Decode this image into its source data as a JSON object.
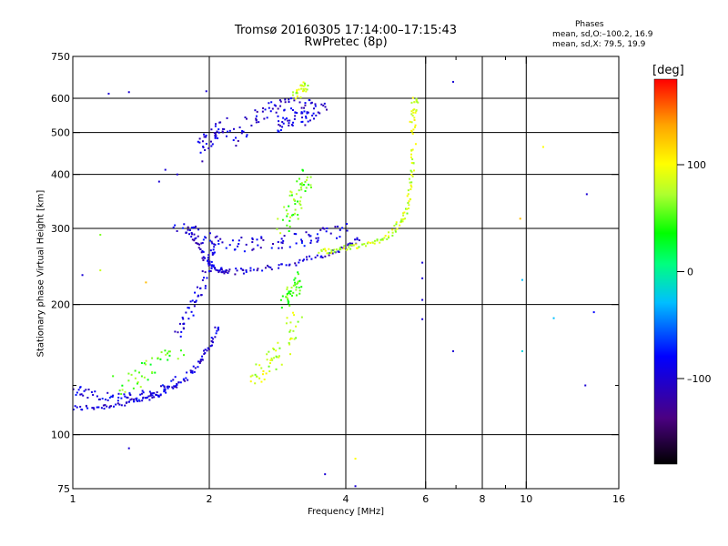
{
  "header": {
    "title_line1": "Tromsø 20160305 17:14:00–17:15:43",
    "title_line2": "RwPretec (8p)",
    "stats_title": "Phases",
    "stats_o": "mean, sd,O:–100.2, 16.9",
    "stats_x": "mean, sd,X:  79.5, 19.9"
  },
  "colorbar": {
    "unit_label": "[deg]",
    "ticks": [
      "100",
      "0",
      "–100"
    ],
    "tick_values": [
      100,
      0,
      -100
    ],
    "range": [
      -180,
      180
    ]
  },
  "chart_data": {
    "type": "scatter",
    "title": "Tromsø 20160305 17:14:00–17:15:43",
    "subtitle": "RwPretec (8p)",
    "xlabel": "Frequency [MHz]",
    "ylabel": "Stationary phase Virtual Height [km]",
    "xscale": "log",
    "yscale": "log",
    "xlim": [
      1,
      16
    ],
    "ylim": [
      75,
      750
    ],
    "x_ticks": [
      "1",
      "2",
      "4",
      "6",
      "8",
      "10",
      "16"
    ],
    "x_tick_values": [
      1,
      2,
      4,
      6,
      8,
      10,
      16
    ],
    "x_minor_values": [
      7,
      9
    ],
    "y_ticks": [
      "750",
      "600",
      "500",
      "400",
      "300",
      "200",
      "100",
      "75"
    ],
    "y_tick_values": [
      750,
      600,
      500,
      400,
      300,
      200,
      100,
      75
    ],
    "y_minor_values": [
      130
    ],
    "grid_x": [
      2,
      4,
      6,
      8,
      10
    ],
    "grid_y": [
      600,
      500,
      400,
      300,
      200,
      100
    ],
    "color_encoding": "phase [deg]",
    "series": [
      {
        "traces": [
          {
            "x": [
              1.0,
              1.15,
              1.3,
              1.45,
              1.6,
              1.75,
              1.9,
              2.0,
              2.1
            ],
            "y": [
              115,
              116,
              118,
              121,
              126,
              134,
              146,
              160,
              180
            ],
            "phase": -100,
            "spread": 0.012
          },
          {
            "x": [
              1.0,
              1.1,
              1.25,
              1.4,
              1.55,
              1.7
            ],
            "y": [
              128,
              124,
              122,
              122,
              126,
              134
            ],
            "phase": -90,
            "spread": 0.02
          },
          {
            "x": [
              1.7,
              1.8,
              1.9,
              2.0,
              2.05
            ],
            "y": [
              170,
              190,
              215,
              245,
              280
            ],
            "phase": -100,
            "spread": 0.02
          },
          {
            "x": [
              1.8,
              1.9,
              2.0,
              2.1,
              2.2,
              2.5,
              3.0,
              3.5,
              4.0,
              4.3
            ],
            "y": [
              300,
              270,
              250,
              240,
              238,
              240,
              248,
              258,
              270,
              285
            ],
            "phase": -100,
            "spread": 0.012
          },
          {
            "x": [
              1.7,
              1.9,
              2.1,
              2.4,
              2.8,
              3.2,
              3.6,
              4.0
            ],
            "y": [
              300,
              290,
              280,
              275,
              280,
              282,
              290,
              300
            ],
            "phase": -95,
            "spread": 0.03
          },
          {
            "x": [
              1.9,
              2.0,
              2.1,
              2.2
            ],
            "y": [
              450,
              480,
              500,
              520
            ],
            "phase": -100,
            "spread": 0.04
          },
          {
            "x": [
              2.3,
              2.5,
              2.7,
              3.0,
              3.3,
              3.6
            ],
            "y": [
              480,
              540,
              570,
              580,
              575,
              570
            ],
            "phase": -100,
            "spread": 0.03
          },
          {
            "x": [
              2.8,
              3.0,
              3.2,
              3.4
            ],
            "y": [
              520,
              530,
              540,
              550
            ],
            "phase": -95,
            "spread": 0.03
          },
          {
            "x": [
              3.5,
              3.8,
              4.2,
              4.6,
              5.0,
              5.3,
              5.5,
              5.6,
              5.65
            ],
            "y": [
              265,
              268,
              272,
              278,
              290,
              310,
              340,
              400,
              470
            ],
            "phase": 80,
            "spread": 0.012
          },
          {
            "x": [
              5.6,
              5.65,
              5.7
            ],
            "y": [
              500,
              560,
              610
            ],
            "phase": 90,
            "spread": 0.015
          },
          {
            "x": [
              1.25,
              1.4,
              1.55,
              1.7
            ],
            "y": [
              130,
              135,
              145,
              160
            ],
            "phase": 50,
            "spread": 0.04
          },
          {
            "x": [
              2.5,
              2.6,
              2.8,
              3.0,
              3.1
            ],
            "y": [
              135,
              140,
              150,
              165,
              190
            ],
            "phase": 80,
            "spread": 0.04
          },
          {
            "x": [
              2.9,
              3.0,
              3.1,
              3.2
            ],
            "y": [
              200,
              210,
              220,
              230
            ],
            "phase": 50,
            "spread": 0.03
          },
          {
            "x": [
              2.9,
              3.0,
              3.1,
              3.2,
              3.3
            ],
            "y": [
              300,
              320,
              350,
              380,
              400
            ],
            "phase": 60,
            "spread": 0.04
          },
          {
            "x": [
              3.1,
              3.2,
              3.3
            ],
            "y": [
              610,
              630,
              645
            ],
            "phase": 80,
            "spread": 0.02
          }
        ]
      }
    ],
    "scatter_points": [
      {
        "x": 1.2,
        "y": 615,
        "phase": -100
      },
      {
        "x": 1.33,
        "y": 620,
        "phase": -100
      },
      {
        "x": 1.97,
        "y": 623,
        "phase": -100
      },
      {
        "x": 6.9,
        "y": 655,
        "phase": -100
      },
      {
        "x": 10.9,
        "y": 463,
        "phase": 100
      },
      {
        "x": 13.6,
        "y": 360,
        "phase": -100
      },
      {
        "x": 9.7,
        "y": 316,
        "phase": 130
      },
      {
        "x": 9.8,
        "y": 228,
        "phase": -30
      },
      {
        "x": 11.5,
        "y": 186,
        "phase": -30
      },
      {
        "x": 14.1,
        "y": 192,
        "phase": -80
      },
      {
        "x": 9.8,
        "y": 156,
        "phase": -20
      },
      {
        "x": 6.9,
        "y": 156,
        "phase": -100
      },
      {
        "x": 13.5,
        "y": 130,
        "phase": -100
      },
      {
        "x": 1.33,
        "y": 93,
        "phase": -100
      },
      {
        "x": 4.2,
        "y": 88,
        "phase": 100
      },
      {
        "x": 3.6,
        "y": 81,
        "phase": -100
      },
      {
        "x": 4.2,
        "y": 76,
        "phase": -100
      },
      {
        "x": 5.9,
        "y": 250,
        "phase": -100
      },
      {
        "x": 5.9,
        "y": 230,
        "phase": -100
      },
      {
        "x": 5.9,
        "y": 205,
        "phase": -100
      },
      {
        "x": 5.9,
        "y": 185,
        "phase": -100
      },
      {
        "x": 1.05,
        "y": 234,
        "phase": -100
      },
      {
        "x": 1.15,
        "y": 240,
        "phase": 80
      },
      {
        "x": 1.15,
        "y": 290,
        "phase": 60
      },
      {
        "x": 1.45,
        "y": 225,
        "phase": 130
      },
      {
        "x": 1.55,
        "y": 385,
        "phase": -100
      },
      {
        "x": 1.6,
        "y": 410,
        "phase": -100
      },
      {
        "x": 1.7,
        "y": 400,
        "phase": -100
      }
    ]
  }
}
